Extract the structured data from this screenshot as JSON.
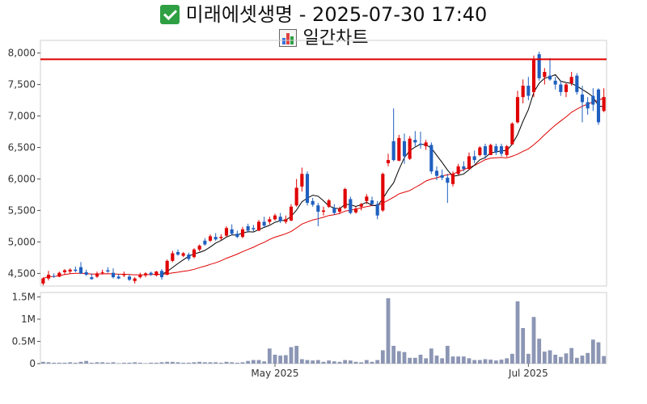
{
  "title": {
    "line1": "미래에셋생명 - 2025-07-30 17:40",
    "line2": "일간차트",
    "line1_icon": "check-mark-icon",
    "line2_icon": "bar-chart-icon"
  },
  "colors": {
    "up": "#e00000",
    "down": "#1f5fbf",
    "ma_short": "#000000",
    "ma_long": "#e00000",
    "volume": "#8c96b4",
    "ref_line": "#e00000"
  },
  "chart_data": {
    "type": "candlestick",
    "price_axis": {
      "min": 4300,
      "max": 8200,
      "ticks": [
        4500,
        5000,
        5500,
        6000,
        6500,
        7000,
        7500,
        8000
      ],
      "tick_labels": [
        "4,500",
        "5,000",
        "5,500",
        "6,000",
        "6,500",
        "7,000",
        "7,500",
        "8,000"
      ]
    },
    "volume_axis": {
      "min": 0,
      "max": 1600000,
      "ticks": [
        0,
        500000,
        1000000,
        1500000
      ],
      "tick_labels": [
        "0",
        "0.5M",
        "1M",
        "1.5M"
      ]
    },
    "x_labels": [
      {
        "index": 43,
        "label": "May 2025"
      },
      {
        "index": 90,
        "label": "Jul 2025"
      }
    ],
    "reference_line": 7900,
    "ohlcv": [
      [
        4340,
        4440,
        4310,
        4420,
        40000
      ],
      [
        4420,
        4540,
        4390,
        4480,
        30000
      ],
      [
        4460,
        4500,
        4430,
        4450,
        20000
      ],
      [
        4450,
        4530,
        4440,
        4510,
        20000
      ],
      [
        4520,
        4570,
        4480,
        4550,
        20000
      ],
      [
        4530,
        4580,
        4500,
        4560,
        30000
      ],
      [
        4560,
        4610,
        4520,
        4540,
        20000
      ],
      [
        4600,
        4680,
        4490,
        4500,
        40000
      ],
      [
        4520,
        4560,
        4460,
        4480,
        60000
      ],
      [
        4440,
        4500,
        4400,
        4410,
        20000
      ],
      [
        4450,
        4530,
        4430,
        4500,
        30000
      ],
      [
        4510,
        4560,
        4480,
        4520,
        30000
      ],
      [
        4550,
        4600,
        4510,
        4530,
        20000
      ],
      [
        4510,
        4580,
        4420,
        4440,
        30000
      ],
      [
        4450,
        4490,
        4410,
        4420,
        10000
      ],
      [
        4470,
        4530,
        4440,
        4490,
        20000
      ],
      [
        4450,
        4480,
        4380,
        4400,
        20000
      ],
      [
        4380,
        4440,
        4340,
        4420,
        30000
      ],
      [
        4440,
        4510,
        4420,
        4480,
        20000
      ],
      [
        4470,
        4520,
        4440,
        4500,
        10000
      ],
      [
        4510,
        4530,
        4460,
        4480,
        20000
      ],
      [
        4470,
        4540,
        4450,
        4530,
        20000
      ],
      [
        4540,
        4570,
        4400,
        4440,
        30000
      ],
      [
        4480,
        4720,
        4470,
        4700,
        40000
      ],
      [
        4700,
        4860,
        4680,
        4820,
        40000
      ],
      [
        4840,
        4880,
        4780,
        4800,
        30000
      ],
      [
        4780,
        4840,
        4760,
        4820,
        20000
      ],
      [
        4800,
        4830,
        4700,
        4730,
        20000
      ],
      [
        4760,
        4900,
        4740,
        4880,
        30000
      ],
      [
        4880,
        4960,
        4850,
        4940,
        40000
      ],
      [
        5020,
        5060,
        4940,
        4960,
        30000
      ],
      [
        5020,
        5120,
        5000,
        5090,
        30000
      ],
      [
        5080,
        5140,
        5020,
        5040,
        30000
      ],
      [
        5060,
        5120,
        5030,
        5080,
        20000
      ],
      [
        5100,
        5250,
        5080,
        5220,
        40000
      ],
      [
        5200,
        5280,
        5110,
        5130,
        30000
      ],
      [
        5130,
        5180,
        5060,
        5080,
        20000
      ],
      [
        5080,
        5240,
        5060,
        5200,
        30000
      ],
      [
        5250,
        5290,
        5150,
        5180,
        60000
      ],
      [
        5220,
        5270,
        5170,
        5200,
        80000
      ],
      [
        5180,
        5350,
        5170,
        5320,
        80000
      ],
      [
        5320,
        5400,
        5230,
        5260,
        50000
      ],
      [
        5320,
        5400,
        5280,
        5360,
        340000
      ],
      [
        5360,
        5450,
        5340,
        5420,
        200000
      ],
      [
        5400,
        5460,
        5300,
        5330,
        180000
      ],
      [
        5320,
        5420,
        5290,
        5360,
        190000
      ],
      [
        5340,
        5600,
        5330,
        5560,
        370000
      ],
      [
        5580,
        6000,
        5560,
        5860,
        400000
      ],
      [
        5880,
        6180,
        5800,
        6080,
        100000
      ],
      [
        6080,
        6120,
        5580,
        5620,
        80000
      ],
      [
        5650,
        5700,
        5560,
        5590,
        70000
      ],
      [
        5580,
        5620,
        5250,
        5480,
        80000
      ],
      [
        5480,
        5560,
        5420,
        5500,
        40000
      ],
      [
        5560,
        5680,
        5540,
        5660,
        70000
      ],
      [
        5540,
        5600,
        5430,
        5460,
        50000
      ],
      [
        5480,
        5560,
        5440,
        5530,
        40000
      ],
      [
        5540,
        5860,
        5520,
        5840,
        80000
      ],
      [
        5680,
        5720,
        5440,
        5460,
        70000
      ],
      [
        5470,
        5560,
        5450,
        5530,
        40000
      ],
      [
        5560,
        5620,
        5500,
        5600,
        30000
      ],
      [
        5650,
        5760,
        5600,
        5720,
        80000
      ],
      [
        5660,
        5720,
        5580,
        5600,
        40000
      ],
      [
        5600,
        5650,
        5360,
        5420,
        80000
      ],
      [
        5500,
        6100,
        5480,
        6080,
        300000
      ],
      [
        6250,
        6400,
        6200,
        6300,
        1470000
      ],
      [
        6600,
        7120,
        6280,
        6300,
        400000
      ],
      [
        6290,
        6700,
        6280,
        6650,
        280000
      ],
      [
        6600,
        6720,
        6240,
        6360,
        260000
      ],
      [
        6320,
        6680,
        6300,
        6640,
        130000
      ],
      [
        6620,
        6760,
        6520,
        6580,
        130000
      ],
      [
        6560,
        6750,
        6480,
        6540,
        200000
      ],
      [
        6520,
        6620,
        6460,
        6580,
        120000
      ],
      [
        6540,
        6580,
        6080,
        6120,
        340000
      ],
      [
        6130,
        6200,
        5980,
        6050,
        180000
      ],
      [
        6060,
        6150,
        5980,
        6020,
        120000
      ],
      [
        6020,
        6080,
        5620,
        5940,
        400000
      ],
      [
        5920,
        6120,
        5880,
        6080,
        160000
      ],
      [
        6080,
        6240,
        6060,
        6200,
        160000
      ],
      [
        6200,
        6280,
        6120,
        6160,
        160000
      ],
      [
        6160,
        6420,
        6140,
        6360,
        120000
      ],
      [
        6360,
        6450,
        6250,
        6300,
        80000
      ],
      [
        6380,
        6520,
        6360,
        6500,
        80000
      ],
      [
        6520,
        6560,
        6320,
        6380,
        100000
      ],
      [
        6380,
        6560,
        6380,
        6540,
        90000
      ],
      [
        6520,
        6560,
        6380,
        6420,
        70000
      ],
      [
        6520,
        6560,
        6360,
        6400,
        90000
      ],
      [
        6380,
        6540,
        6350,
        6520,
        120000
      ],
      [
        6550,
        6900,
        6540,
        6880,
        220000
      ],
      [
        6900,
        7400,
        6880,
        7300,
        1400000
      ],
      [
        7300,
        7580,
        7200,
        7480,
        800000
      ],
      [
        7480,
        7620,
        7250,
        7320,
        220000
      ],
      [
        7380,
        7960,
        7300,
        7900,
        1050000
      ],
      [
        7980,
        8020,
        7560,
        7600,
        560000
      ],
      [
        7620,
        7760,
        7500,
        7700,
        270000
      ],
      [
        7640,
        7920,
        7560,
        7580,
        300000
      ],
      [
        7560,
        7620,
        7420,
        7500,
        200000
      ],
      [
        7500,
        7560,
        7320,
        7380,
        150000
      ],
      [
        7380,
        7520,
        7300,
        7500,
        230000
      ],
      [
        7520,
        7700,
        7480,
        7620,
        350000
      ],
      [
        7640,
        7680,
        7340,
        7380,
        130000
      ],
      [
        7340,
        7480,
        6900,
        7220,
        180000
      ],
      [
        7220,
        7300,
        7020,
        7120,
        240000
      ],
      [
        7320,
        7440,
        7080,
        7180,
        540000
      ],
      [
        7420,
        7440,
        6860,
        6900,
        480000
      ],
      [
        7080,
        7440,
        7060,
        7300,
        170000
      ]
    ]
  }
}
